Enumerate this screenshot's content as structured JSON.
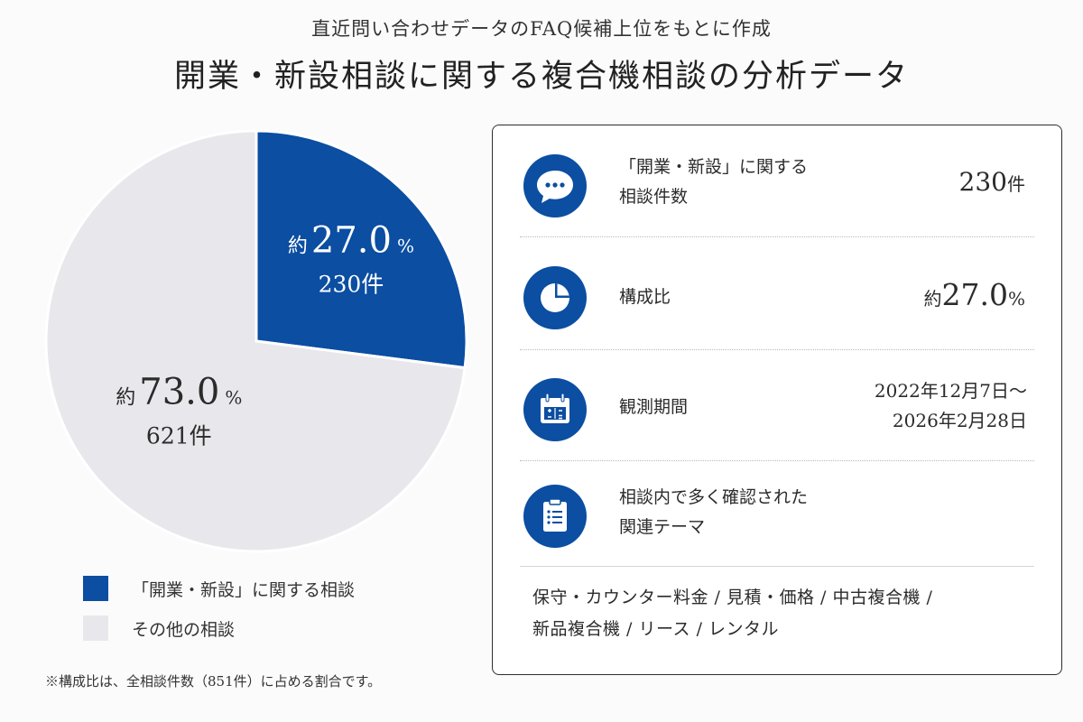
{
  "header": {
    "subtitle": "直近問い合わせデータのFAQ候補上位をもとに作成",
    "title": "開業・新設相談に関する複合機相談の分析データ"
  },
  "chart_data": {
    "type": "pie",
    "total": 851,
    "slices": [
      {
        "name": "「開業・新設」に関する相談",
        "count": 230,
        "percent": 27.0,
        "percent_label": "27.0",
        "count_label": "230件",
        "color": "#0b4ea2",
        "text_color": "#ffffff"
      },
      {
        "name": "その他の相談",
        "count": 621,
        "percent": 73.0,
        "percent_label": "73.0",
        "count_label": "621件",
        "color": "#e8e8ec",
        "text_color": "#2b2b2b"
      }
    ],
    "prefix": "約",
    "unit": "%"
  },
  "legend": [
    {
      "label": "「開業・新設」に関する相談",
      "color": "#0b4ea2"
    },
    {
      "label": "その他の相談",
      "color": "#e8e8ec"
    }
  ],
  "footnote": "※構成比は、全相談件数（851件）に占める割合です。",
  "card": {
    "rows": [
      {
        "icon": "chat-bubble-icon",
        "label_line1": "「開業・新設」に関する",
        "label_line2": "相談件数",
        "value_num": "230",
        "value_unit": "件"
      },
      {
        "icon": "pie-chart-icon",
        "label": "構成比",
        "value_prefix": "約",
        "value_num": "27.0",
        "value_unit": "%"
      },
      {
        "icon": "calendar-icon",
        "label": "観測期間",
        "value_line1": "2022年12月7日～",
        "value_line2": "2026年2月28日"
      },
      {
        "icon": "clipboard-list-icon",
        "label_line1": "相談内で多く確認された",
        "label_line2": "関連テーマ"
      }
    ],
    "themes_line1": "保守・カウンター料金 / 見積・価格 / 中古複合機 /",
    "themes_line2": "新品複合機 / リース / レンタル"
  },
  "colors": {
    "accent": "#0b4ea2",
    "other": "#e8e8ec"
  }
}
